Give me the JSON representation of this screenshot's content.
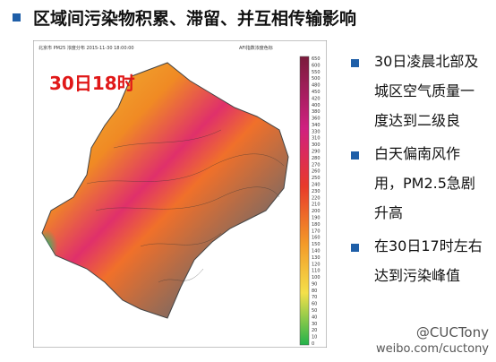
{
  "title": "区域间污染物积累、滞留、并互相传输影响",
  "map": {
    "header": "北京市 PM25 浓度分布 2015-11-30 18:00:00",
    "scale_title": "AFI指数浓度色标",
    "time_label": "30日18时",
    "scale_labels": [
      "650",
      "600",
      "550",
      "500",
      "480",
      "450",
      "420",
      "400",
      "380",
      "360",
      "340",
      "330",
      "310",
      "300",
      "290",
      "280",
      "270",
      "260",
      "250",
      "240",
      "230",
      "220",
      "210",
      "200",
      "190",
      "180",
      "170",
      "160",
      "150",
      "140",
      "130",
      "120",
      "110",
      "100",
      "90",
      "80",
      "70",
      "60",
      "50",
      "40",
      "30",
      "20",
      "10",
      "0"
    ]
  },
  "bullets": [
    "30日凌晨北部及城区空气质量一度达到二级良",
    "白天偏南风作用，PM2.5急剧升高",
    "在30日17时左右达到污染峰值"
  ],
  "watermark": {
    "handle": "@CUCTony",
    "url": "weibo.com/cuctony"
  }
}
